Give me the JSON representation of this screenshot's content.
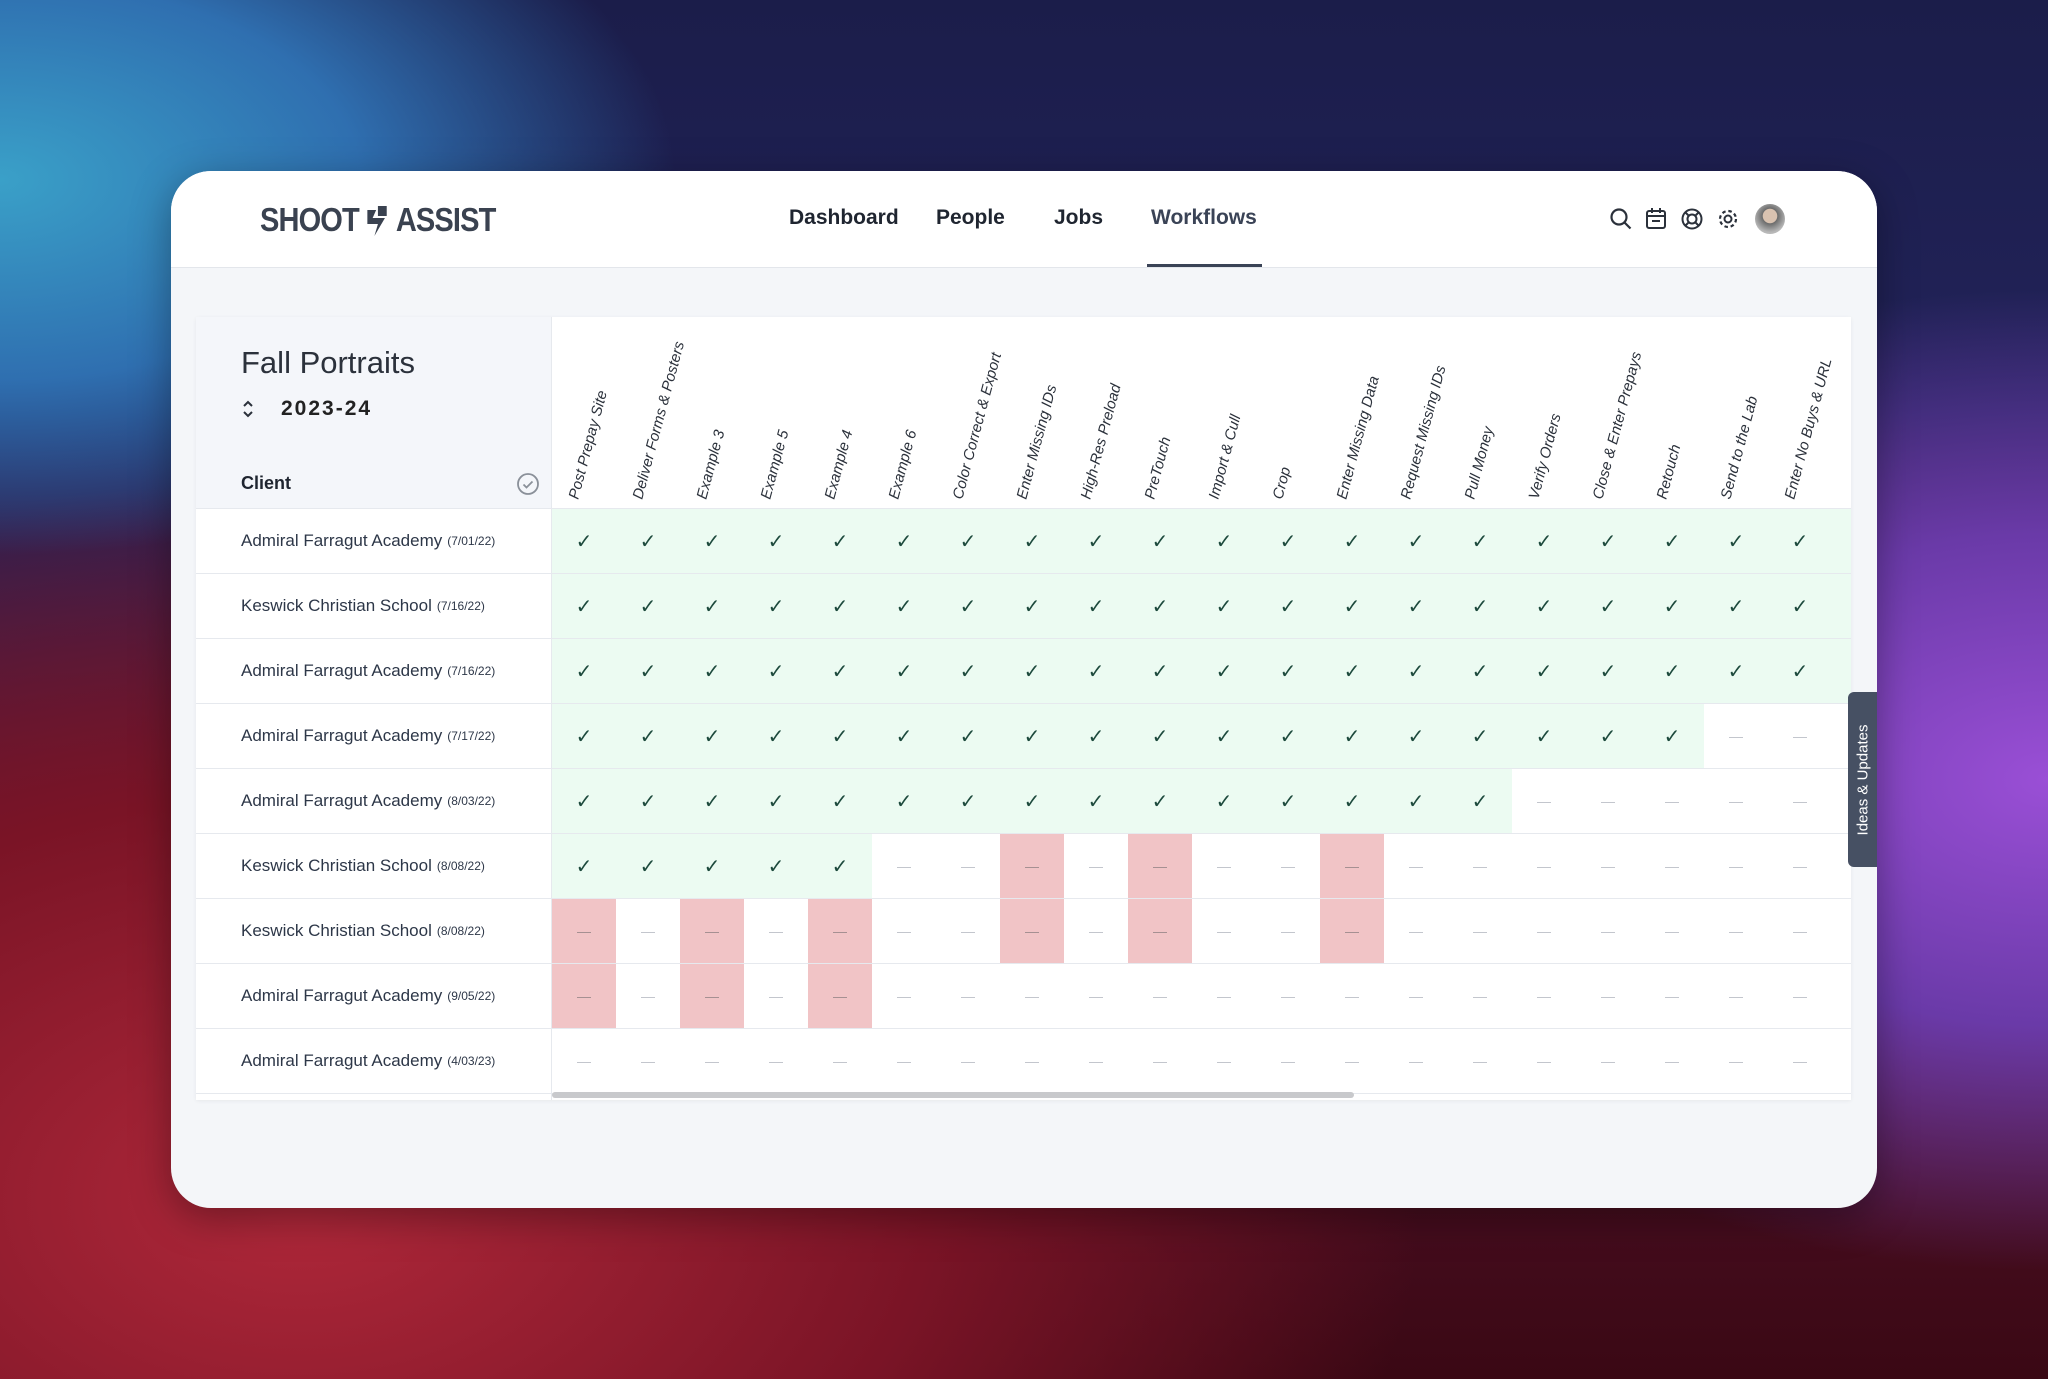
{
  "app": {
    "logo_left": "SHOOT",
    "logo_right": "ASSIST"
  },
  "nav": {
    "items": [
      {
        "label": "Dashboard"
      },
      {
        "label": "People"
      },
      {
        "label": "Jobs"
      },
      {
        "label": "Workflows",
        "active": true
      }
    ]
  },
  "header_icons": [
    "search-icon",
    "calendar-icon",
    "help-lifebuoy-icon",
    "gear-icon",
    "avatar"
  ],
  "workflow": {
    "title": "Fall Portraits",
    "season": "2023-24",
    "client_header": "Client"
  },
  "columns": [
    "Post Prepay Site",
    "Deliver Forms & Posters",
    "Example 3",
    "Example 5",
    "Example 4",
    "Example 6",
    "Color Correct & Export",
    "Enter Missing IDs",
    "High-Res Preload",
    "PreTouch",
    "Import & Cull",
    "Crop",
    "Enter Missing Data",
    "Request Missing IDs",
    "Pull Money",
    "Verify Orders",
    "Close & Enter Prepays",
    "Retouch",
    "Send to the Lab",
    "Enter No Buys & URL"
  ],
  "rows": [
    {
      "name": "Admiral Farragut Academy",
      "date": "(7/01/22)",
      "states": "cccccccccccccccccccc"
    },
    {
      "name": "Keswick Christian School",
      "date": "(7/16/22)",
      "states": "cccccccccccccccccccc"
    },
    {
      "name": "Admiral Farragut Academy",
      "date": "(7/16/22)",
      "states": "cccccccccccccccccccc"
    },
    {
      "name": "Admiral Farragut Academy",
      "date": "(7/17/22)",
      "states": "ccccccccccccccccccnn"
    },
    {
      "name": "Admiral Farragut Academy",
      "date": "(8/03/22)",
      "states": "cccccccccccccccnnnnn"
    },
    {
      "name": "Keswick Christian School",
      "date": "(8/08/22)",
      "states": "cccccnnrnrnnrnnnnnnn"
    },
    {
      "name": "Keswick Christian School",
      "date": "(8/08/22)",
      "states": "rnrnrnnrnrnnrnnnnnnn"
    },
    {
      "name": "Admiral Farragut Academy",
      "date": "(9/05/22)",
      "states": "rnrnrnnnnnnnnnnnnnnn"
    },
    {
      "name": "Admiral Farragut Academy",
      "date": "(4/03/23)",
      "states": "nnnnnnnnnnnnnnnnnnnn"
    }
  ],
  "state_legend": {
    "c": "check",
    "n": "none",
    "r": "overdue"
  },
  "colors": {
    "check_bg": "#ecfbf2",
    "overdue_bg": "#f1c4c6",
    "accent": "#3a4356"
  },
  "feedback_tab": "Ideas & Updates"
}
